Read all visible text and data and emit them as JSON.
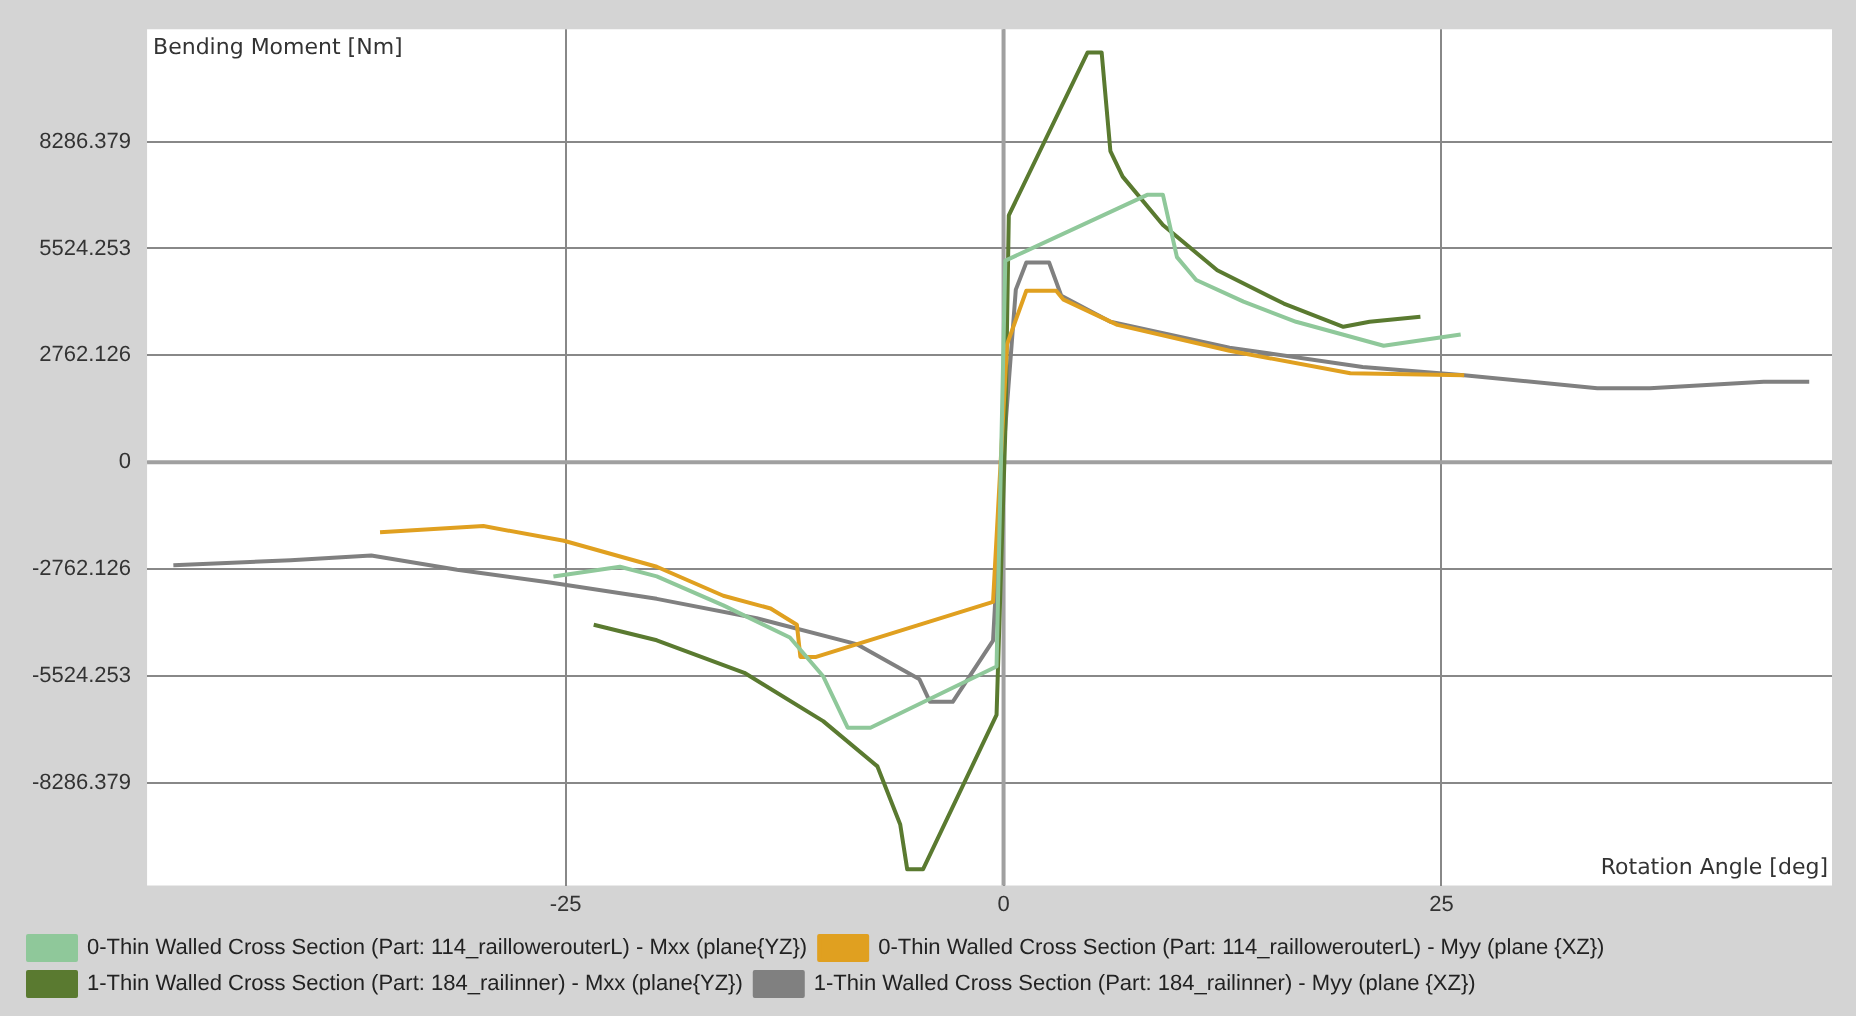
{
  "chart_data": {
    "type": "line",
    "xlabel": "Rotation Angle [deg]",
    "ylabel": "Bending Moment [Nm]",
    "xlim": [
      -48.9,
      47.3
    ],
    "ylim": [
      -10940,
      11190
    ],
    "xticks": [
      -25,
      0,
      25
    ],
    "yticks": [
      {
        "value": -8286.379,
        "label": "-8286.379"
      },
      {
        "value": -5524.253,
        "label": "-5524.253"
      },
      {
        "value": -2762.126,
        "label": "-2762.126"
      },
      0,
      {
        "value": 2762.126,
        "label": "2762.126"
      },
      {
        "value": 5524.253,
        "label": "5524.253"
      },
      {
        "value": 8286.379,
        "label": "8286.379"
      }
    ],
    "grid": true,
    "legend": "bottom",
    "marker": "none",
    "line_style": "solid",
    "series": [
      {
        "name": "0-Thin Walled Cross Section (Part: 114_raillowerouterL) - Mxx (plane{YZ})",
        "color": "#8fc89a",
        "x": [
          -25.7,
          -21.9,
          -19.8,
          -16.0,
          -12.2,
          -10.3,
          -8.9,
          -7.6,
          -0.4,
          0.1,
          8.2,
          9.1,
          9.9,
          11.0,
          13.7,
          16.7,
          21.7,
          26.1
        ],
        "values": [
          -2950,
          -2700,
          -2950,
          -3700,
          -4530,
          -5530,
          -6860,
          -6860,
          -5280,
          5210,
          6910,
          6910,
          5300,
          4710,
          4150,
          3630,
          3010,
          3300
        ]
      },
      {
        "name": "0-Thin Walled Cross Section (Part: 114_raillowerouterL) - Myy (plane {XZ})",
        "color": "#e0a020",
        "x": [
          -35.6,
          -29.7,
          -25.1,
          -19.8,
          -16.0,
          -13.3,
          -11.8,
          -11.6,
          -10.7,
          -0.6,
          0.2,
          1.3,
          3.0,
          3.4,
          6.5,
          12.9,
          19.8,
          26.3
        ],
        "values": [
          -1810,
          -1650,
          -2030,
          -2700,
          -3450,
          -3780,
          -4200,
          -5030,
          -5030,
          -3610,
          3050,
          4430,
          4430,
          4210,
          3550,
          2880,
          2300,
          2250
        ]
      },
      {
        "name": "1-Thin Walled Cross Section (Part: 184_railinner) - Mxx (plane{YZ})",
        "color": "#5a7a30",
        "x": [
          -23.4,
          -19.8,
          -14.8,
          -10.3,
          -7.2,
          -5.9,
          -5.5,
          -4.6,
          -0.4,
          0.1,
          0.3,
          4.8,
          5.6,
          6.1,
          6.8,
          9.1,
          12.2,
          16.0,
          19.4,
          20.9,
          23.8
        ],
        "values": [
          -4200,
          -4600,
          -5440,
          -6690,
          -7860,
          -9360,
          -10520,
          -10520,
          -6530,
          800,
          6380,
          10590,
          10590,
          8040,
          7380,
          6130,
          4960,
          4100,
          3500,
          3630,
          3760
        ]
      },
      {
        "name": "1-Thin Walled Cross Section (Part: 184_railinner) - Myy (plane {XZ})",
        "color": "#808080",
        "x": [
          -47.4,
          -40.7,
          -36.1,
          -31.2,
          -25.9,
          -19.8,
          -14.1,
          -8.4,
          -4.8,
          -4.2,
          -2.9,
          -0.6,
          0.0,
          0.7,
          1.3,
          2.6,
          3.3,
          6.1,
          12.9,
          20.5,
          26.3,
          33.9,
          36.9,
          43.4,
          46.0
        ],
        "values": [
          -2660,
          -2530,
          -2410,
          -2780,
          -3110,
          -3530,
          -4030,
          -4700,
          -5610,
          -6190,
          -6190,
          -4610,
          300,
          4460,
          5160,
          5160,
          4300,
          3630,
          2960,
          2460,
          2250,
          1910,
          1910,
          2080,
          2080
        ]
      }
    ]
  }
}
